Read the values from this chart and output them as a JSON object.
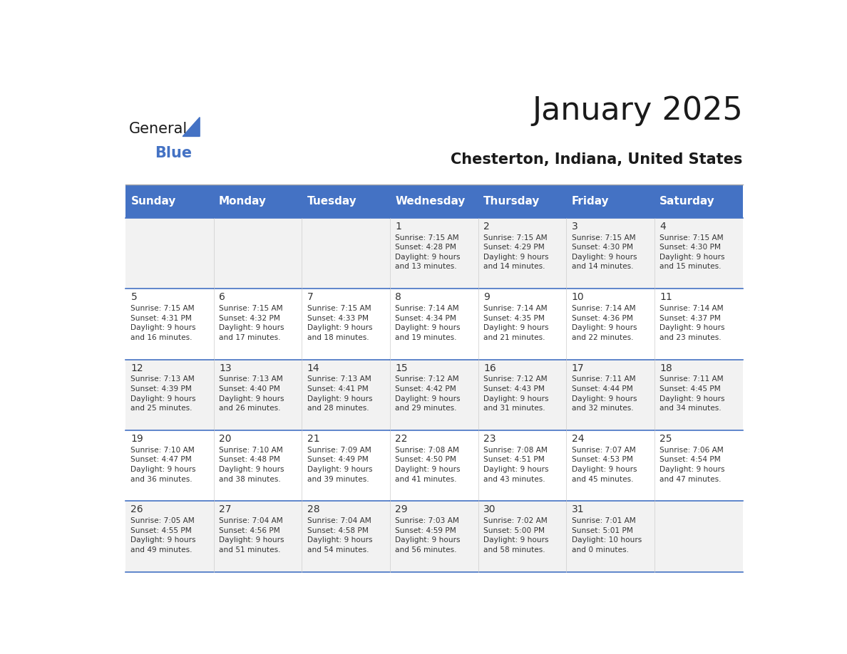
{
  "title": "January 2025",
  "subtitle": "Chesterton, Indiana, United States",
  "days_of_week": [
    "Sunday",
    "Monday",
    "Tuesday",
    "Wednesday",
    "Thursday",
    "Friday",
    "Saturday"
  ],
  "header_bg": "#4472C4",
  "header_text_color": "#FFFFFF",
  "cell_bg_even": "#F2F2F2",
  "cell_bg_odd": "#FFFFFF",
  "cell_border_color": "#4472C4",
  "title_color": "#1a1a1a",
  "subtitle_color": "#1a1a1a",
  "text_color": "#333333",
  "logo_general_color": "#1a1a1a",
  "logo_blue_color": "#4472C4",
  "calendar_data": [
    [
      {
        "day": null,
        "info": ""
      },
      {
        "day": null,
        "info": ""
      },
      {
        "day": null,
        "info": ""
      },
      {
        "day": 1,
        "info": "Sunrise: 7:15 AM\nSunset: 4:28 PM\nDaylight: 9 hours\nand 13 minutes."
      },
      {
        "day": 2,
        "info": "Sunrise: 7:15 AM\nSunset: 4:29 PM\nDaylight: 9 hours\nand 14 minutes."
      },
      {
        "day": 3,
        "info": "Sunrise: 7:15 AM\nSunset: 4:30 PM\nDaylight: 9 hours\nand 14 minutes."
      },
      {
        "day": 4,
        "info": "Sunrise: 7:15 AM\nSunset: 4:30 PM\nDaylight: 9 hours\nand 15 minutes."
      }
    ],
    [
      {
        "day": 5,
        "info": "Sunrise: 7:15 AM\nSunset: 4:31 PM\nDaylight: 9 hours\nand 16 minutes."
      },
      {
        "day": 6,
        "info": "Sunrise: 7:15 AM\nSunset: 4:32 PM\nDaylight: 9 hours\nand 17 minutes."
      },
      {
        "day": 7,
        "info": "Sunrise: 7:15 AM\nSunset: 4:33 PM\nDaylight: 9 hours\nand 18 minutes."
      },
      {
        "day": 8,
        "info": "Sunrise: 7:14 AM\nSunset: 4:34 PM\nDaylight: 9 hours\nand 19 minutes."
      },
      {
        "day": 9,
        "info": "Sunrise: 7:14 AM\nSunset: 4:35 PM\nDaylight: 9 hours\nand 21 minutes."
      },
      {
        "day": 10,
        "info": "Sunrise: 7:14 AM\nSunset: 4:36 PM\nDaylight: 9 hours\nand 22 minutes."
      },
      {
        "day": 11,
        "info": "Sunrise: 7:14 AM\nSunset: 4:37 PM\nDaylight: 9 hours\nand 23 minutes."
      }
    ],
    [
      {
        "day": 12,
        "info": "Sunrise: 7:13 AM\nSunset: 4:39 PM\nDaylight: 9 hours\nand 25 minutes."
      },
      {
        "day": 13,
        "info": "Sunrise: 7:13 AM\nSunset: 4:40 PM\nDaylight: 9 hours\nand 26 minutes."
      },
      {
        "day": 14,
        "info": "Sunrise: 7:13 AM\nSunset: 4:41 PM\nDaylight: 9 hours\nand 28 minutes."
      },
      {
        "day": 15,
        "info": "Sunrise: 7:12 AM\nSunset: 4:42 PM\nDaylight: 9 hours\nand 29 minutes."
      },
      {
        "day": 16,
        "info": "Sunrise: 7:12 AM\nSunset: 4:43 PM\nDaylight: 9 hours\nand 31 minutes."
      },
      {
        "day": 17,
        "info": "Sunrise: 7:11 AM\nSunset: 4:44 PM\nDaylight: 9 hours\nand 32 minutes."
      },
      {
        "day": 18,
        "info": "Sunrise: 7:11 AM\nSunset: 4:45 PM\nDaylight: 9 hours\nand 34 minutes."
      }
    ],
    [
      {
        "day": 19,
        "info": "Sunrise: 7:10 AM\nSunset: 4:47 PM\nDaylight: 9 hours\nand 36 minutes."
      },
      {
        "day": 20,
        "info": "Sunrise: 7:10 AM\nSunset: 4:48 PM\nDaylight: 9 hours\nand 38 minutes."
      },
      {
        "day": 21,
        "info": "Sunrise: 7:09 AM\nSunset: 4:49 PM\nDaylight: 9 hours\nand 39 minutes."
      },
      {
        "day": 22,
        "info": "Sunrise: 7:08 AM\nSunset: 4:50 PM\nDaylight: 9 hours\nand 41 minutes."
      },
      {
        "day": 23,
        "info": "Sunrise: 7:08 AM\nSunset: 4:51 PM\nDaylight: 9 hours\nand 43 minutes."
      },
      {
        "day": 24,
        "info": "Sunrise: 7:07 AM\nSunset: 4:53 PM\nDaylight: 9 hours\nand 45 minutes."
      },
      {
        "day": 25,
        "info": "Sunrise: 7:06 AM\nSunset: 4:54 PM\nDaylight: 9 hours\nand 47 minutes."
      }
    ],
    [
      {
        "day": 26,
        "info": "Sunrise: 7:05 AM\nSunset: 4:55 PM\nDaylight: 9 hours\nand 49 minutes."
      },
      {
        "day": 27,
        "info": "Sunrise: 7:04 AM\nSunset: 4:56 PM\nDaylight: 9 hours\nand 51 minutes."
      },
      {
        "day": 28,
        "info": "Sunrise: 7:04 AM\nSunset: 4:58 PM\nDaylight: 9 hours\nand 54 minutes."
      },
      {
        "day": 29,
        "info": "Sunrise: 7:03 AM\nSunset: 4:59 PM\nDaylight: 9 hours\nand 56 minutes."
      },
      {
        "day": 30,
        "info": "Sunrise: 7:02 AM\nSunset: 5:00 PM\nDaylight: 9 hours\nand 58 minutes."
      },
      {
        "day": 31,
        "info": "Sunrise: 7:01 AM\nSunset: 5:01 PM\nDaylight: 10 hours\nand 0 minutes."
      },
      {
        "day": null,
        "info": ""
      }
    ]
  ]
}
